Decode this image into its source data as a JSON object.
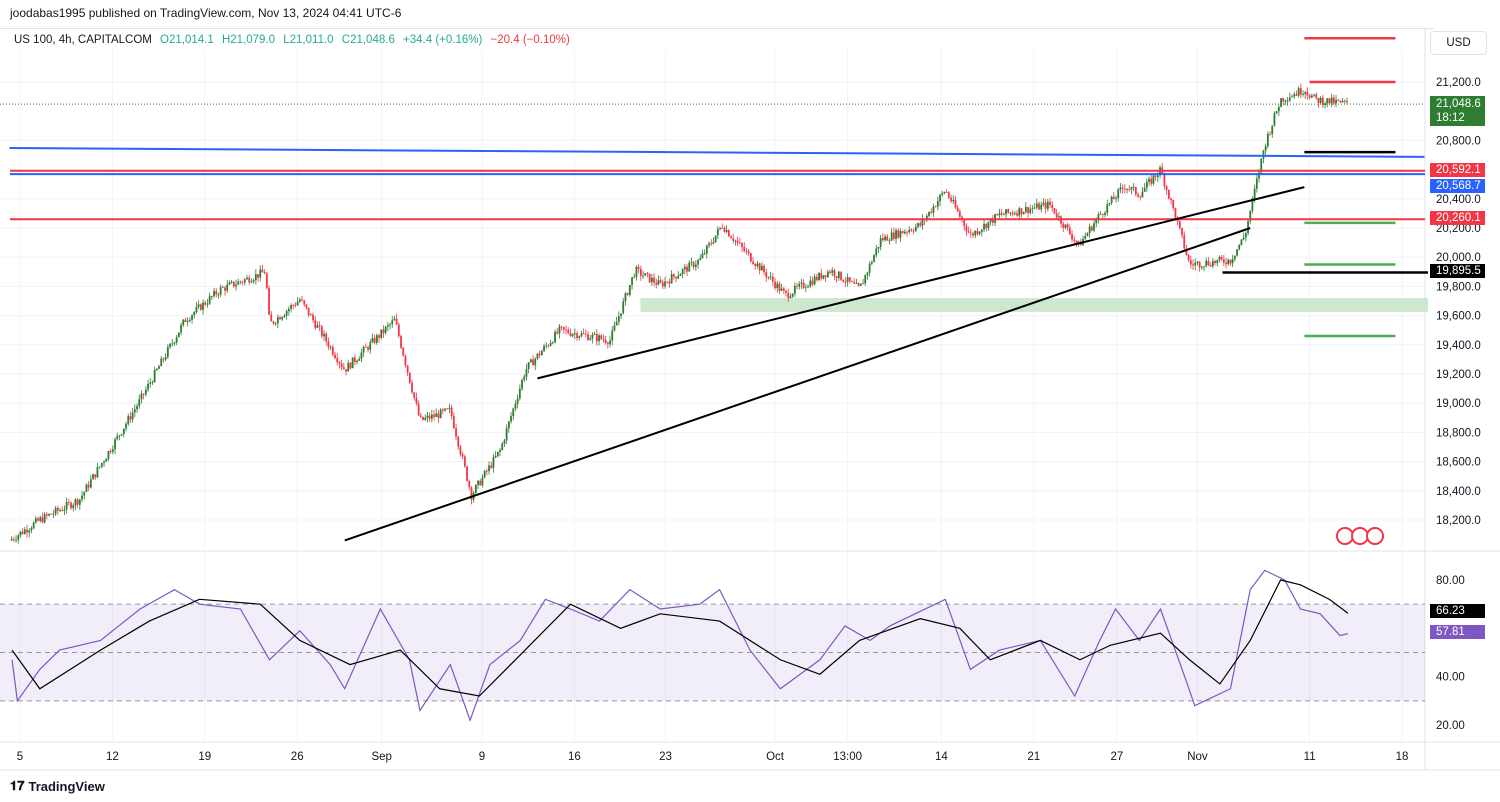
{
  "header": {
    "published": "joodabas1995 published on TradingView.com, Nov 13, 2024 04:41 UTC-6"
  },
  "legend": {
    "symbol": "US 100, 4h, CAPITALCOM",
    "open": "O21,014.1",
    "high": "H21,079.0",
    "low": "L21,011.0",
    "close": "C21,048.6",
    "change": "+34.4 (+0.16%)",
    "change2": "−20.4 (−0.10%)"
  },
  "currency": "USD",
  "price_tags": {
    "last": "21,048.6",
    "countdown": "18:12",
    "red1": "20,592.1",
    "blue1": "20,568.7",
    "red2": "20,260.1",
    "black1": "19,895.5",
    "rsi_ma": "66.23",
    "rsi": "57.81"
  },
  "colors": {
    "up": "#2e7d32",
    "down": "#f23645",
    "blue": "#2962ff",
    "rsi": "#7e57c2",
    "zone": "#c8e6c9"
  },
  "footer": {
    "brand": "TradingView"
  },
  "chart_data": {
    "type": "candlestick",
    "title": "US 100, 4h, CAPITALCOM",
    "x_unit": "days since Aug 5, 2024",
    "ylim": [
      18100,
      21600
    ],
    "price_ticks": [
      "21,200.0",
      "20,800.0",
      "20,400.0",
      "20,200.0",
      "20,000.0",
      "19,800.0",
      "19,600.0",
      "19,400.0",
      "19,200.0",
      "19,000.0",
      "18,800.0",
      "18,600.0",
      "18,400.0",
      "18,200.0"
    ],
    "price_tick_values": [
      21200,
      20800,
      20400,
      20200,
      20000,
      19800,
      19600,
      19400,
      19200,
      19000,
      18800,
      18600,
      18400,
      18200
    ],
    "x_ticks": [
      {
        "label": "5",
        "d": 0
      },
      {
        "label": "12",
        "d": 7
      },
      {
        "label": "19",
        "d": 14
      },
      {
        "label": "26",
        "d": 21
      },
      {
        "label": "Sep",
        "d": 27.4
      },
      {
        "label": "9",
        "d": 35
      },
      {
        "label": "16",
        "d": 42
      },
      {
        "label": "23",
        "d": 48.9
      },
      {
        "label": "Oct",
        "d": 57.2
      },
      {
        "label": "13:00",
        "d": 62.7
      },
      {
        "label": "14",
        "d": 69.8
      },
      {
        "label": "21",
        "d": 76.8
      },
      {
        "label": "27",
        "d": 83.1
      },
      {
        "label": "Nov",
        "d": 89.2
      },
      {
        "label": "11",
        "d": 97.7
      },
      {
        "label": "18",
        "d": 104.7
      }
    ],
    "price_path": [
      [
        -0.8,
        18060
      ],
      [
        1.5,
        18200
      ],
      [
        4.5,
        18340
      ],
      [
        9.1,
        19020
      ],
      [
        12.5,
        19570
      ],
      [
        15.2,
        19780
      ],
      [
        18.6,
        19900
      ],
      [
        18.9,
        19540
      ],
      [
        21.2,
        19710
      ],
      [
        24.6,
        19230
      ],
      [
        28.4,
        19570
      ],
      [
        30.3,
        18880
      ],
      [
        32.6,
        18950
      ],
      [
        34.2,
        18370
      ],
      [
        36.4,
        18680
      ],
      [
        38.3,
        19230
      ],
      [
        40.9,
        19500
      ],
      [
        44.7,
        19430
      ],
      [
        46.6,
        19910
      ],
      [
        48.5,
        19810
      ],
      [
        51.5,
        19980
      ],
      [
        53.2,
        20220
      ],
      [
        54.5,
        20080
      ],
      [
        58,
        19740
      ],
      [
        61.4,
        19910
      ],
      [
        63.6,
        19780
      ],
      [
        65.2,
        20120
      ],
      [
        68.2,
        20220
      ],
      [
        70.1,
        20460
      ],
      [
        72,
        20150
      ],
      [
        74.2,
        20290
      ],
      [
        78,
        20360
      ],
      [
        80.2,
        20080
      ],
      [
        81.8,
        20290
      ],
      [
        83.7,
        20490
      ],
      [
        84.8,
        20430
      ],
      [
        86.4,
        20600
      ],
      [
        87.5,
        20290
      ],
      [
        88.6,
        19950
      ],
      [
        91.7,
        19980
      ],
      [
        92.8,
        20150
      ],
      [
        94.3,
        20770
      ],
      [
        95.5,
        21080
      ],
      [
        97.3,
        21150
      ],
      [
        98.1,
        21080
      ],
      [
        100.6,
        21048.6
      ]
    ],
    "rsi": {
      "ylim": [
        15,
        90
      ],
      "levels": [
        70,
        50,
        30
      ],
      "ticks": [
        "80.00",
        "40.00",
        "20.00"
      ],
      "tick_values": [
        80,
        40,
        20
      ],
      "values": [
        [
          -0.6,
          47
        ],
        [
          -0.2,
          30
        ],
        [
          1.5,
          43
        ],
        [
          3,
          51
        ],
        [
          6.1,
          55
        ],
        [
          9.1,
          68
        ],
        [
          11.7,
          76
        ],
        [
          13.6,
          70
        ],
        [
          16.7,
          68
        ],
        [
          18.9,
          47
        ],
        [
          21.2,
          59
        ],
        [
          23.5,
          45
        ],
        [
          24.6,
          35
        ],
        [
          27.3,
          68
        ],
        [
          29.5,
          47
        ],
        [
          30.3,
          26
        ],
        [
          32.6,
          45
        ],
        [
          34.1,
          22
        ],
        [
          35.6,
          45
        ],
        [
          37.9,
          55
        ],
        [
          39.8,
          72
        ],
        [
          41.7,
          68
        ],
        [
          43.9,
          63
        ],
        [
          46.2,
          76
        ],
        [
          48.5,
          68
        ],
        [
          51.5,
          70
        ],
        [
          53,
          76
        ],
        [
          55.3,
          51
        ],
        [
          57.6,
          35
        ],
        [
          60.6,
          47
        ],
        [
          62.5,
          61
        ],
        [
          64.4,
          55
        ],
        [
          65.9,
          61
        ],
        [
          70.1,
          72
        ],
        [
          72,
          43
        ],
        [
          74.2,
          51
        ],
        [
          77.3,
          55
        ],
        [
          79.9,
          32
        ],
        [
          81.8,
          55
        ],
        [
          83,
          68
        ],
        [
          84.8,
          55
        ],
        [
          86.4,
          68
        ],
        [
          88.3,
          39
        ],
        [
          89,
          28
        ],
        [
          91.7,
          35
        ],
        [
          93.2,
          76
        ],
        [
          94.3,
          84
        ],
        [
          95.8,
          80
        ],
        [
          97,
          68
        ],
        [
          98.5,
          66
        ],
        [
          100,
          57
        ],
        [
          100.6,
          57.81
        ]
      ],
      "ma": [
        [
          -0.6,
          51
        ],
        [
          1.5,
          35
        ],
        [
          6.1,
          51
        ],
        [
          9.8,
          63
        ],
        [
          13.6,
          72
        ],
        [
          18.2,
          70
        ],
        [
          21.2,
          55
        ],
        [
          25,
          45
        ],
        [
          28.8,
          51
        ],
        [
          31.8,
          35
        ],
        [
          34.8,
          32
        ],
        [
          37.9,
          49
        ],
        [
          41.7,
          70
        ],
        [
          45.5,
          60
        ],
        [
          48.5,
          66
        ],
        [
          53,
          63
        ],
        [
          57.6,
          47
        ],
        [
          60.6,
          41
        ],
        [
          63.6,
          55
        ],
        [
          68.2,
          64
        ],
        [
          71.2,
          60
        ],
        [
          73.5,
          47
        ],
        [
          77.3,
          55
        ],
        [
          80.3,
          47
        ],
        [
          82.6,
          53
        ],
        [
          86.4,
          58
        ],
        [
          88.6,
          47
        ],
        [
          90.9,
          37
        ],
        [
          93.2,
          55
        ],
        [
          95.5,
          80
        ],
        [
          97,
          78
        ],
        [
          99.2,
          72
        ],
        [
          100.6,
          66.23
        ]
      ]
    },
    "drawings": {
      "blue_trend": [
        [
          -0.8,
          20748
        ],
        [
          106.4,
          20687
        ]
      ],
      "hlines": [
        {
          "price": 20592.1,
          "color": "red"
        },
        {
          "price": 20568.7,
          "color": "blue"
        },
        {
          "price": 20260.1,
          "color": "red"
        }
      ],
      "trendlines": [
        [
          [
            39.2,
            19170
          ],
          [
            97.3,
            20480
          ]
        ],
        [
          [
            24.6,
            18060
          ],
          [
            93.2,
            20200
          ]
        ]
      ],
      "zone": {
        "from_day": 47,
        "price_top": 19720,
        "price_bottom": 19625
      },
      "segments": [
        {
          "d0": 97.3,
          "d1": 104.2,
          "price": 21500,
          "color": "red"
        },
        {
          "d0": 97.7,
          "d1": 104.2,
          "price": 21200,
          "color": "red"
        },
        {
          "d0": 97.3,
          "d1": 104.2,
          "price": 20720,
          "color": "black"
        },
        {
          "d0": 97.3,
          "d1": 104.2,
          "price": 20235,
          "color": "green"
        },
        {
          "d0": 97.3,
          "d1": 104.2,
          "price": 19950,
          "color": "green"
        },
        {
          "d0": 91.1,
          "d1": 106.7,
          "price": 19895.5,
          "color": "black"
        },
        {
          "d0": 97.3,
          "d1": 104.2,
          "price": 19460,
          "color": "green"
        }
      ]
    }
  }
}
